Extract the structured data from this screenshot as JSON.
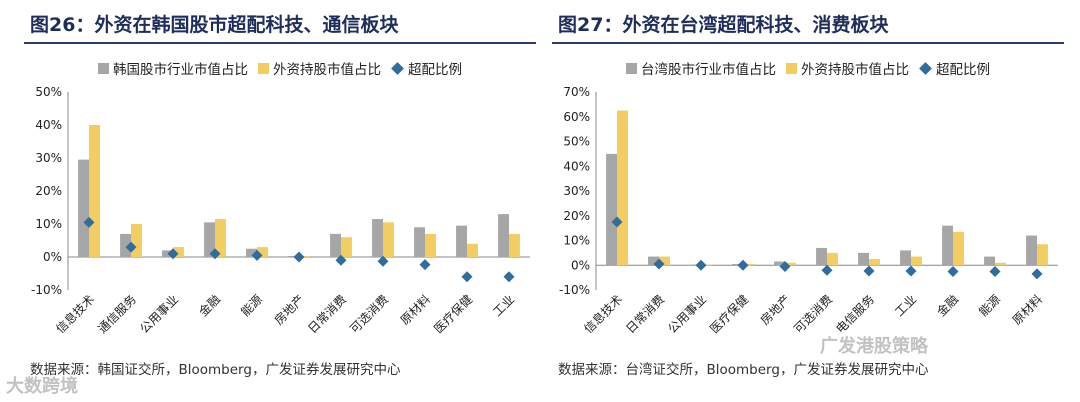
{
  "colors": {
    "market_share": "#a6a6a6",
    "foreign_share": "#f2cd62",
    "overweight": "#2e6d9e",
    "title": "#1f2d5a"
  },
  "watermarks": {
    "left": "大数跨境",
    "right": "广发港股策略"
  },
  "chart_data": [
    {
      "type": "bar",
      "title": "图26：外资在韩国股市超配科技、通信板块",
      "source": "数据来源：韩国证交所，Bloomberg，广发证券发展研究中心",
      "legend": [
        "韩国股市行业市值占比",
        "外资持股市值占比",
        "超配比例"
      ],
      "legend_position": "top",
      "categories": [
        "信息技术",
        "通信服务",
        "公用事业",
        "金融",
        "能源",
        "房地产",
        "日常消费",
        "可选消费",
        "原材料",
        "医疗保健",
        "工业"
      ],
      "series": [
        {
          "name": "韩国股市行业市值占比",
          "kind": "bar",
          "values": [
            29.5,
            7,
            2,
            10.5,
            2.5,
            0.3,
            7,
            11.5,
            9,
            9.5,
            13
          ]
        },
        {
          "name": "外资持股市值占比",
          "kind": "bar",
          "values": [
            40,
            10,
            3,
            11.5,
            3,
            0.3,
            6,
            10.5,
            7,
            4,
            7
          ]
        },
        {
          "name": "超配比例",
          "kind": "marker",
          "values": [
            10.5,
            3,
            1,
            1,
            0.5,
            0,
            -1,
            -1.3,
            -2.3,
            -6,
            -6
          ]
        }
      ],
      "y_ticks": [
        "50%",
        "40%",
        "30%",
        "20%",
        "10%",
        "0%",
        "-10%"
      ],
      "ylim": [
        -10,
        50
      ],
      "grid": false
    },
    {
      "type": "bar",
      "title": "图27：外资在台湾超配科技、消费板块",
      "source": "数据来源：台湾证交所，Bloomberg，广发证券发展研究中心",
      "legend": [
        "台湾股市行业市值占比",
        "外资持股市值占比",
        "超配比例"
      ],
      "legend_position": "top",
      "categories": [
        "信息技术",
        "日常消费",
        "公用事业",
        "医疗保健",
        "房地产",
        "可选消费",
        "电信服务",
        "工业",
        "金融",
        "能源",
        "原材料"
      ],
      "series": [
        {
          "name": "台湾股市行业市值占比",
          "kind": "bar",
          "values": [
            45,
            3.5,
            0.3,
            0.5,
            1.5,
            7,
            5,
            6,
            16,
            3.5,
            12
          ]
        },
        {
          "name": "外资持股市值占比",
          "kind": "bar",
          "values": [
            62.5,
            3.5,
            0.2,
            0.5,
            1,
            5,
            2.5,
            3.5,
            13.5,
            1,
            8.5
          ]
        },
        {
          "name": "超配比例",
          "kind": "marker",
          "values": [
            17.5,
            0.5,
            0,
            0,
            -0.5,
            -2,
            -2.3,
            -2.3,
            -2.5,
            -2.5,
            -3.5
          ]
        }
      ],
      "y_ticks": [
        "70%",
        "60%",
        "50%",
        "40%",
        "30%",
        "20%",
        "10%",
        "0%",
        "-10%"
      ],
      "ylim": [
        -10,
        70
      ],
      "grid": false
    }
  ]
}
